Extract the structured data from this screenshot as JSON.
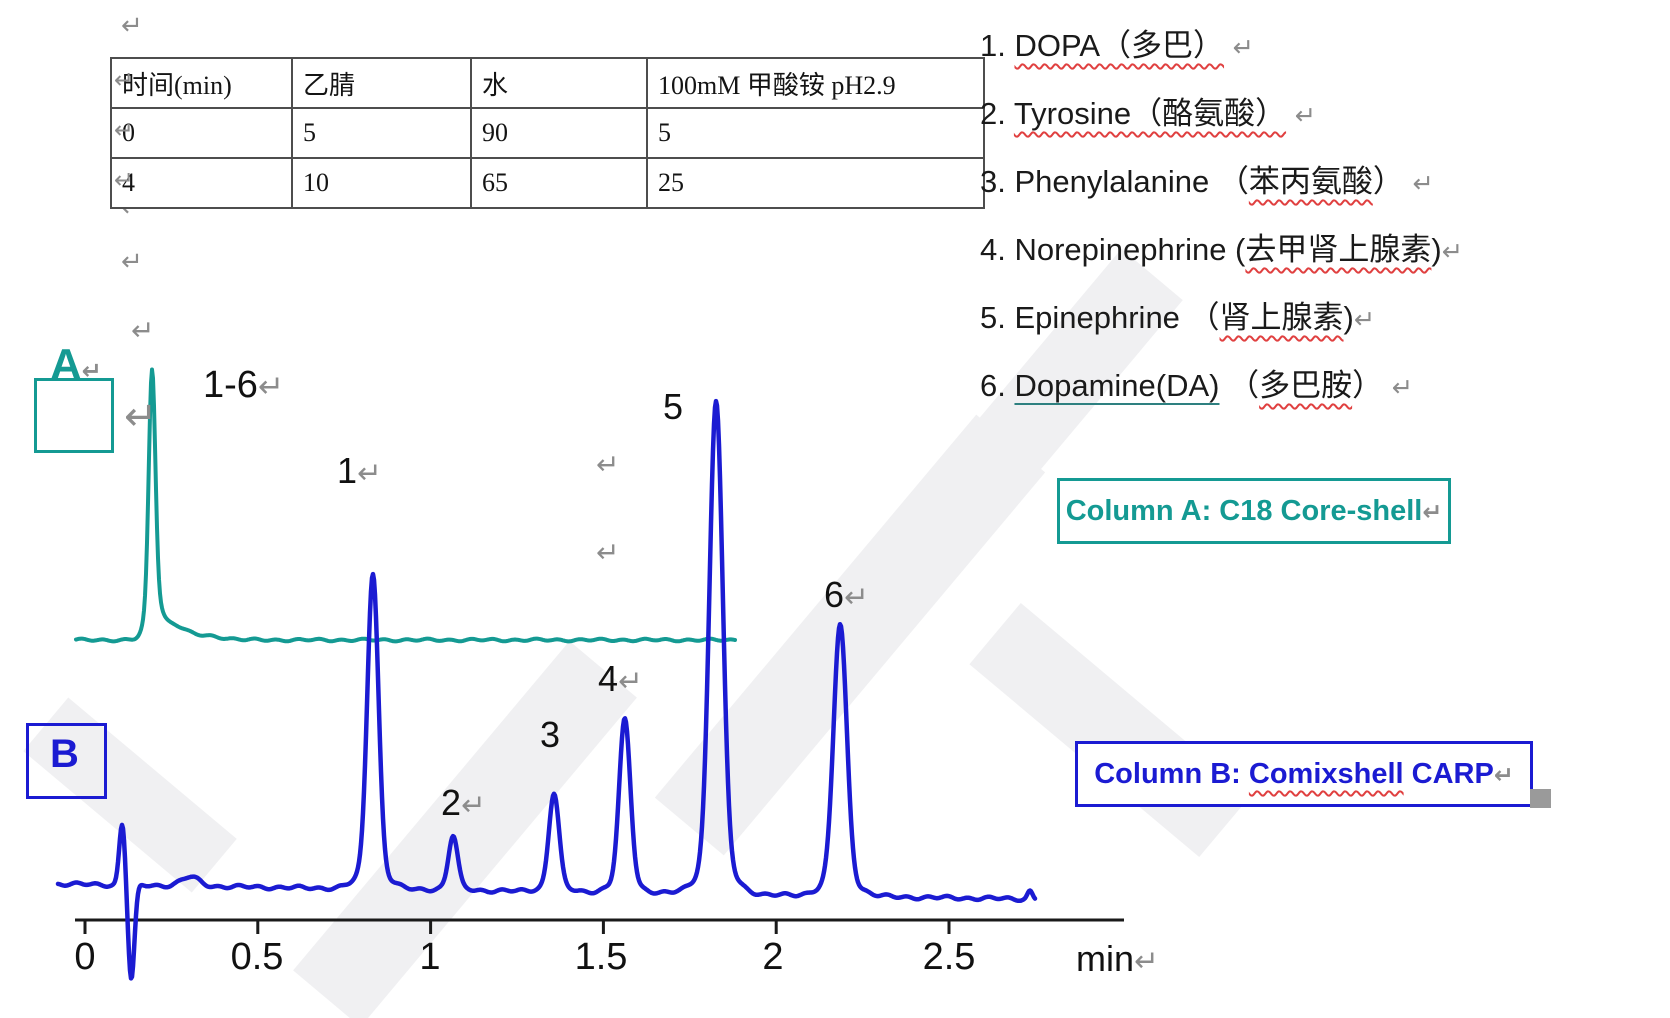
{
  "colors": {
    "teal": "#149a93",
    "blue": "#1b1bd2",
    "wavy_red": "#e04040",
    "under_teal": "#2e8080",
    "gray_mark": "#8c8c8c",
    "axis_black": "#1a1a1a"
  },
  "marks": {
    "return_mark": "↵"
  },
  "table": {
    "headers": [
      "时间(min)",
      "乙腈",
      "水",
      "100mM 甲酸铵 pH2.9"
    ],
    "rows": [
      [
        "0",
        "5",
        "90",
        "5"
      ],
      [
        "4",
        "10",
        "65",
        "25"
      ]
    ]
  },
  "legend": {
    "items": [
      {
        "segments": [
          {
            "t": "1. "
          },
          {
            "t": "DOPA（多巴）"
          }
        ]
      },
      {
        "segments": [
          {
            "t": "2. "
          },
          {
            "t": "Tyrosine（酪氨酸）"
          }
        ]
      },
      {
        "segments": [
          {
            "t": "3. Phenylalanine （"
          },
          {
            "t": "苯丙氨酸"
          },
          {
            "t": "）"
          }
        ]
      },
      {
        "segments": [
          {
            "t": "4. Norepinephrine ("
          },
          {
            "t": "去甲肾上腺素"
          },
          {
            "t": ")"
          }
        ]
      },
      {
        "segments": [
          {
            "t": "5. Epinephrine （"
          },
          {
            "t": "肾上腺素"
          },
          {
            "t": ")"
          }
        ]
      },
      {
        "segments": [
          {
            "t": "6. "
          },
          {
            "t": "Dopamine(DA)"
          },
          {
            "t": " （"
          },
          {
            "t": "多巴胺"
          },
          {
            "t": "）"
          }
        ]
      }
    ]
  },
  "column_boxes": {
    "a": {
      "text": "Column A: C18 Core-shell"
    },
    "b": {
      "prefix": "Column B: ",
      "wavy_word": "Comixshell",
      "suffix": " CARP"
    }
  },
  "chart_data": {
    "type": "line",
    "title": "",
    "xlabel": "min",
    "ylabel": "",
    "grid": false,
    "legend_position": "none",
    "x_ticks": [
      0,
      0.5,
      1,
      1.5,
      2,
      2.5
    ],
    "x_tick_labels": [
      "0",
      "0.5",
      "1",
      "1.5",
      "2",
      "2.5"
    ],
    "axis": {
      "x_min": -0.08,
      "x_max": 3.0,
      "unit": "min"
    },
    "series": [
      {
        "name": "Column A: C18 Core-shell",
        "tag": "A",
        "color": "#149a93",
        "x_start": -0.026,
        "x_end": 1.881,
        "annotation": "all six compounds co-elute",
        "peaks": [
          {
            "label": "1-6",
            "rt": 0.194,
            "rel_height": 1.0
          }
        ]
      },
      {
        "name": "Column B: Comixshell CARP",
        "tag": "B",
        "color": "#1b1bd2",
        "x_start": -0.078,
        "x_end": 2.749,
        "injection_artifact_rt": 0.16,
        "peaks": [
          {
            "label": "1",
            "rt": 0.833,
            "rel_height": 0.64
          },
          {
            "label": "2",
            "rt": 1.065,
            "rel_height": 0.11
          },
          {
            "label": "3",
            "rt": 1.357,
            "rel_height": 0.2
          },
          {
            "label": "4",
            "rt": 1.562,
            "rel_height": 0.35
          },
          {
            "label": "5",
            "rt": 1.826,
            "rel_height": 1.0
          },
          {
            "label": "6",
            "rt": 2.185,
            "rel_height": 0.55
          }
        ]
      }
    ]
  }
}
